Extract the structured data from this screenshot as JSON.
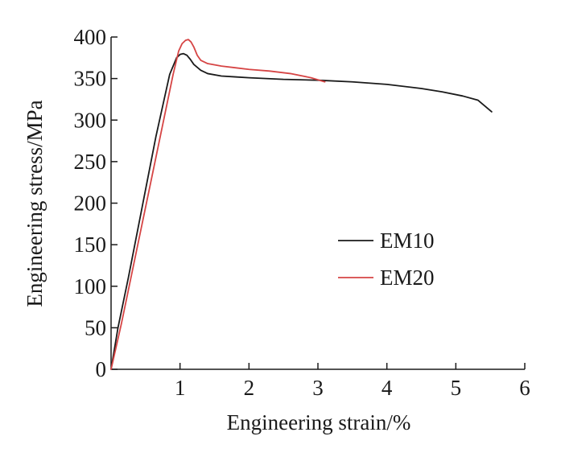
{
  "chart_data": {
    "type": "line",
    "xlabel": "Engineering strain/%",
    "ylabel": "Engineering stress/MPa",
    "xlim": [
      0,
      6
    ],
    "ylim": [
      0,
      400
    ],
    "xticks": [
      1,
      2,
      3,
      4,
      5,
      6
    ],
    "yticks": [
      0,
      50,
      100,
      150,
      200,
      250,
      300,
      350,
      400
    ],
    "grid": false,
    "legend": "center-right",
    "series": [
      {
        "name": "EM10",
        "color": "#1a1a1a",
        "x": [
          0,
          0.1,
          0.25,
          0.45,
          0.65,
          0.85,
          0.95,
          1.0,
          1.05,
          1.1,
          1.15,
          1.2,
          1.3,
          1.4,
          1.6,
          1.8,
          2.0,
          2.5,
          3.0,
          3.5,
          4.0,
          4.5,
          4.8,
          5.1,
          5.32,
          5.42,
          5.52
        ],
        "y": [
          0,
          50,
          110,
          195,
          280,
          355,
          375,
          379,
          380,
          378,
          373,
          367,
          360,
          356,
          353,
          352,
          351,
          349,
          348,
          346,
          343,
          338,
          334,
          329,
          324,
          317,
          310
        ]
      },
      {
        "name": "EM20",
        "color": "#d64545",
        "x": [
          0,
          0.15,
          0.35,
          0.55,
          0.75,
          0.9,
          0.98,
          1.03,
          1.08,
          1.12,
          1.16,
          1.2,
          1.25,
          1.3,
          1.4,
          1.6,
          1.8,
          2.0,
          2.3,
          2.6,
          2.9,
          3.1
        ],
        "y": [
          0,
          55,
          135,
          215,
          295,
          355,
          383,
          392,
          396,
          397,
          394,
          388,
          378,
          372,
          368,
          365,
          363,
          361,
          359,
          356,
          351,
          346
        ]
      }
    ]
  }
}
